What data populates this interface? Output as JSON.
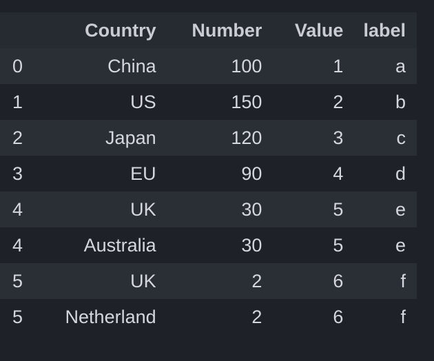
{
  "table": {
    "columns": [
      "Country",
      "Number",
      "Value",
      "label"
    ],
    "rows": [
      {
        "index": "0",
        "Country": "China",
        "Number": "100",
        "Value": "1",
        "label": "a"
      },
      {
        "index": "1",
        "Country": "US",
        "Number": "150",
        "Value": "2",
        "label": "b"
      },
      {
        "index": "2",
        "Country": "Japan",
        "Number": "120",
        "Value": "3",
        "label": "c"
      },
      {
        "index": "3",
        "Country": "EU",
        "Number": "90",
        "Value": "4",
        "label": "d"
      },
      {
        "index": "4",
        "Country": "UK",
        "Number": "30",
        "Value": "5",
        "label": "e"
      },
      {
        "index": "4",
        "Country": "Australia",
        "Number": "30",
        "Value": "5",
        "label": "e"
      },
      {
        "index": "5",
        "Country": "UK",
        "Number": "2",
        "Value": "6",
        "label": "f"
      },
      {
        "index": "5",
        "Country": "Netherland",
        "Number": "2",
        "Value": "6",
        "label": "f"
      }
    ]
  },
  "colors": {
    "background": "#1e2228",
    "row_striped": "#2a2e35",
    "header_bg": "#262a31",
    "text": "#d4d7dc"
  }
}
